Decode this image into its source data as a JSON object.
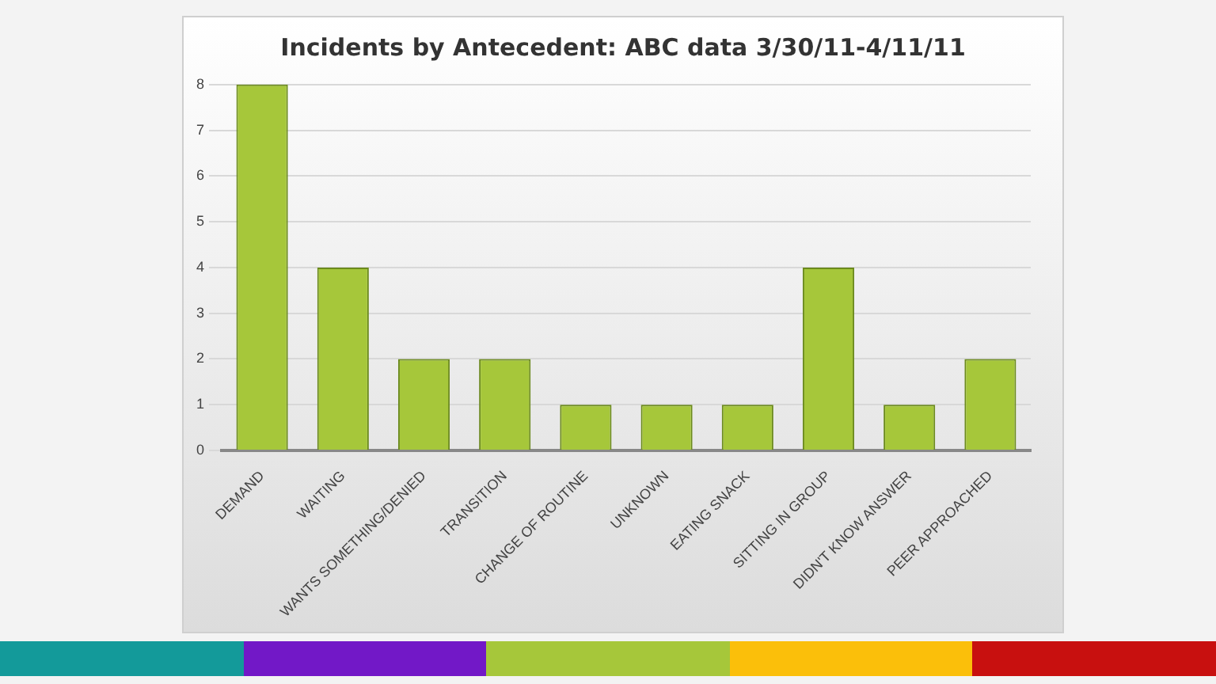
{
  "chart_data": {
    "type": "bar",
    "title": "Incidents by Antecedent: ABC data 3/30/11-4/11/11",
    "categories": [
      "DEMAND",
      "WAITING",
      "WANTS SOMETHING/DENIED",
      "TRANSITION",
      "CHANGE OF ROUTINE",
      "UNKNOWN",
      "EATING SNACK",
      "SITTING IN GROUP",
      "DIDN'T KNOW ANSWER",
      "PEER APPROACHED"
    ],
    "values": [
      8,
      4,
      2,
      2,
      1,
      1,
      1,
      4,
      1,
      2
    ],
    "color": "#a6c73a",
    "ylim": [
      0,
      8
    ],
    "yticks": [
      0,
      1,
      2,
      3,
      4,
      5,
      6,
      7,
      8
    ],
    "grid": "y"
  }
}
